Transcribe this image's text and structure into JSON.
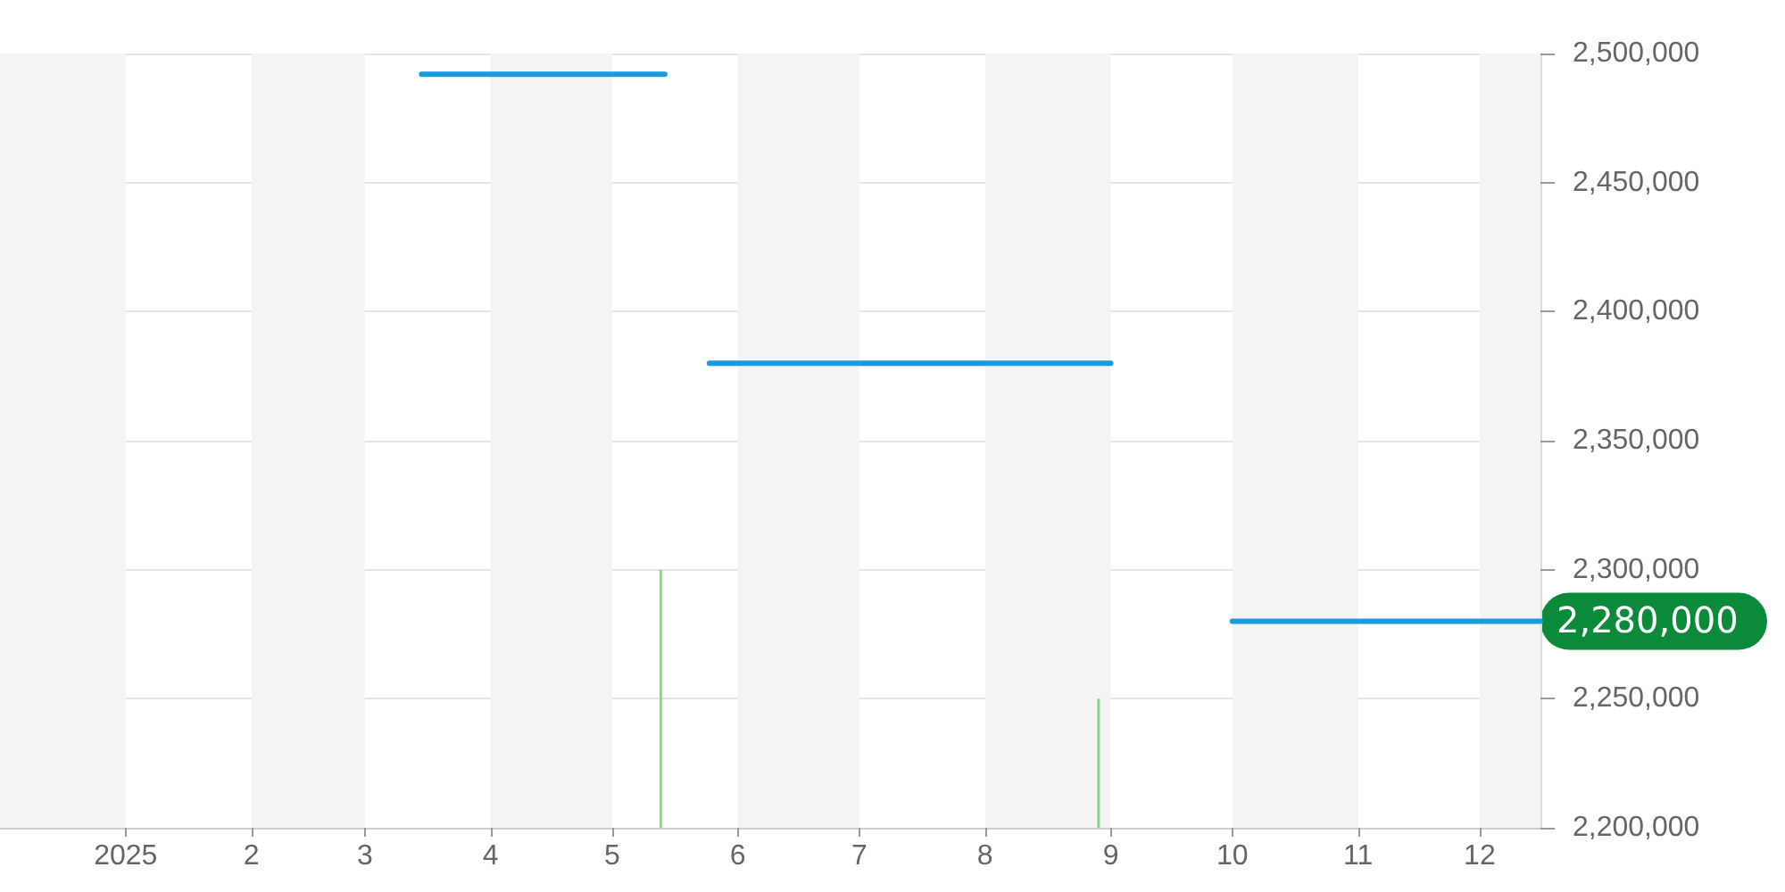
{
  "chart_data": {
    "type": "line",
    "xlim": [
      "2024-12-01",
      "2025-12-16"
    ],
    "xticks": [
      {
        "value": "2025-01-01",
        "label": "2025"
      },
      {
        "value": "2025-02-01",
        "label": "2"
      },
      {
        "value": "2025-03-01",
        "label": "3"
      },
      {
        "value": "2025-04-01",
        "label": "4"
      },
      {
        "value": "2025-05-01",
        "label": "5"
      },
      {
        "value": "2025-06-01",
        "label": "6"
      },
      {
        "value": "2025-07-01",
        "label": "7"
      },
      {
        "value": "2025-08-01",
        "label": "8"
      },
      {
        "value": "2025-09-01",
        "label": "9"
      },
      {
        "value": "2025-10-01",
        "label": "10"
      },
      {
        "value": "2025-11-01",
        "label": "11"
      },
      {
        "value": "2025-12-01",
        "label": "12"
      }
    ],
    "ylim": [
      2200000,
      2500000
    ],
    "yticks": [
      {
        "value": 2200000,
        "label": "2,200,000"
      },
      {
        "value": 2250000,
        "label": "2,250,000"
      },
      {
        "value": 2300000,
        "label": "2,300,000"
      },
      {
        "value": 2350000,
        "label": "2,350,000"
      },
      {
        "value": 2400000,
        "label": "2,400,000"
      },
      {
        "value": 2450000,
        "label": "2,450,000"
      },
      {
        "value": 2500000,
        "label": "2,500,000"
      }
    ],
    "series": [
      {
        "color": "#1a9be0",
        "x": [
          "2025-03-15",
          "2025-05-14",
          "2025-05-20",
          "2025-05-25",
          "2025-09-01",
          "2025-09-15",
          "2025-10-01",
          "2025-12-16"
        ],
        "values": [
          2492000,
          2492000,
          null,
          2380000,
          2380000,
          null,
          2280000,
          2280000
        ]
      },
      {
        "type": "bar",
        "color": "#8fd18f",
        "x": [
          "2025-05-13",
          "2025-08-29"
        ],
        "values": [
          2300000,
          2250000
        ]
      }
    ],
    "bands": [
      {
        "axis": "x",
        "from": "2024-12-01",
        "to": "2025-01-01",
        "color": "#f4f4f4"
      },
      {
        "axis": "x",
        "from": "2025-02-01",
        "to": "2025-03-01",
        "color": "#f4f4f4"
      },
      {
        "axis": "x",
        "from": "2025-04-01",
        "to": "2025-05-01",
        "color": "#f4f4f4"
      },
      {
        "axis": "x",
        "from": "2025-06-01",
        "to": "2025-07-01",
        "color": "#f4f4f4"
      },
      {
        "axis": "x",
        "from": "2025-08-01",
        "to": "2025-09-01",
        "color": "#f4f4f4"
      },
      {
        "axis": "x",
        "from": "2025-10-01",
        "to": "2025-11-01",
        "color": "#f4f4f4"
      },
      {
        "axis": "x",
        "from": "2025-12-01",
        "to": "2025-12-16",
        "color": "#f4f4f4"
      }
    ],
    "annotations": [
      {
        "text": "2,280,000",
        "x": "2025-12-16",
        "y": 2280000
      }
    ],
    "grid": "y",
    "marker": "none",
    "line_style": "solid"
  }
}
